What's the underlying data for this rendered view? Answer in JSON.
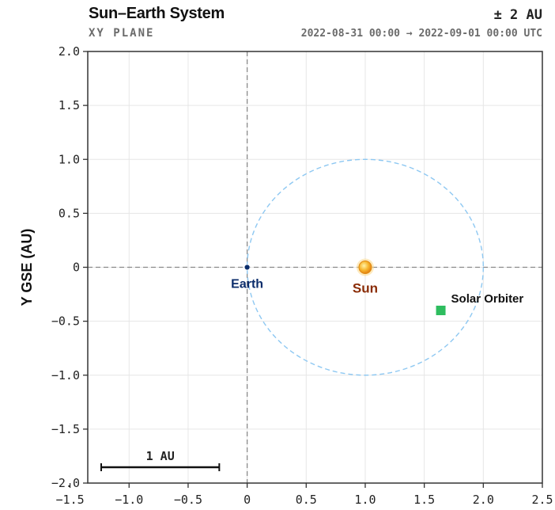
{
  "header": {
    "title": "Sun–Earth System",
    "subtitle": "XY PLANE",
    "range": "± 2 AU",
    "time_range": "2022-08-31 00:00 → 2022-09-01 00:00 UTC"
  },
  "chart_data": {
    "type": "scatter",
    "ylabel": "Y GSE (AU)",
    "xlabel": "",
    "xlim": [
      -1.35,
      2.5
    ],
    "ylim": [
      -2.0,
      2.0
    ],
    "x_ticks": [
      -1.5,
      -1.0,
      -0.5,
      0,
      0.5,
      1.0,
      1.5,
      2.0,
      2.5
    ],
    "x_tick_labels": [
      "−1.5",
      "−1.0",
      "−0.5",
      "0",
      "0.5",
      "1.0",
      "1.5",
      "2.0",
      "2.5"
    ],
    "y_ticks": [
      2.0,
      1.5,
      1.0,
      0.5,
      0,
      -0.5,
      -1.0,
      -1.5,
      -2.0
    ],
    "y_tick_labels": [
      "2.0",
      "1.5",
      "1.0",
      "0.5",
      "0",
      "−0.5",
      "−1.0",
      "−1.5",
      "−2.0"
    ],
    "grid": true,
    "bodies": [
      {
        "name": "Earth",
        "x": 0.0,
        "y": 0.0,
        "color": "#0b2d6b",
        "marker": "circle"
      },
      {
        "name": "Sun",
        "x": 1.0,
        "y": 0.0,
        "color": "#f5a623",
        "label_color": "#8a2c06",
        "marker": "sun"
      },
      {
        "name": "Solar Orbiter",
        "x": 1.64,
        "y": -0.4,
        "color": "#2ebd5f",
        "label_color": "#111111",
        "marker": "square"
      }
    ],
    "orbit": {
      "center_x": 1.0,
      "center_y": 0.0,
      "radius": 1.0,
      "color": "#8ec8f2"
    },
    "scale_bar": {
      "label": "1 AU",
      "length": 1.0
    }
  }
}
